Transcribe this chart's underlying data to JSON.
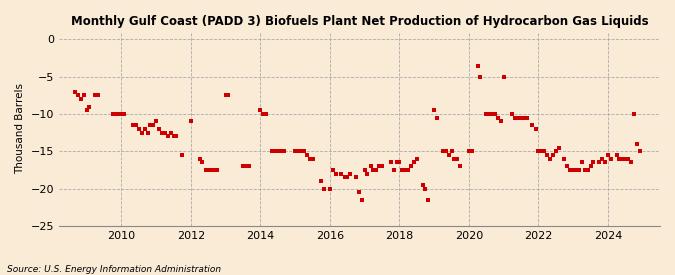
{
  "title": "Monthly Gulf Coast (PADD 3) Biofuels Plant Net Production of Hydrocarbon Gas Liquids",
  "ylabel": "Thousand Barrels",
  "source": "Source: U.S. Energy Information Administration",
  "background_color": "#faebd7",
  "marker_color": "#cc0000",
  "xlim_left": 2008.2,
  "xlim_right": 2025.5,
  "ylim_bottom": -25,
  "ylim_top": 1,
  "yticks": [
    0,
    -5,
    -10,
    -15,
    -20,
    -25
  ],
  "xticks": [
    2010,
    2012,
    2014,
    2016,
    2018,
    2020,
    2022,
    2024
  ],
  "data_points": [
    [
      2008.67,
      -7.0
    ],
    [
      2008.75,
      -7.5
    ],
    [
      2008.83,
      -8.0
    ],
    [
      2008.92,
      -7.5
    ],
    [
      2009.0,
      -9.5
    ],
    [
      2009.08,
      -9.0
    ],
    [
      2009.25,
      -7.5
    ],
    [
      2009.33,
      -7.5
    ],
    [
      2009.75,
      -10.0
    ],
    [
      2009.83,
      -10.0
    ],
    [
      2009.92,
      -10.0
    ],
    [
      2010.0,
      -10.0
    ],
    [
      2010.08,
      -10.0
    ],
    [
      2010.33,
      -11.5
    ],
    [
      2010.42,
      -11.5
    ],
    [
      2010.5,
      -12.0
    ],
    [
      2010.58,
      -12.5
    ],
    [
      2010.67,
      -12.0
    ],
    [
      2010.75,
      -12.5
    ],
    [
      2010.83,
      -11.5
    ],
    [
      2010.92,
      -11.5
    ],
    [
      2011.0,
      -11.0
    ],
    [
      2011.08,
      -12.0
    ],
    [
      2011.17,
      -12.5
    ],
    [
      2011.25,
      -12.5
    ],
    [
      2011.33,
      -13.0
    ],
    [
      2011.42,
      -12.5
    ],
    [
      2011.5,
      -13.0
    ],
    [
      2011.58,
      -13.0
    ],
    [
      2011.75,
      -15.5
    ],
    [
      2012.0,
      -11.0
    ],
    [
      2012.25,
      -16.0
    ],
    [
      2012.33,
      -16.5
    ],
    [
      2012.42,
      -17.5
    ],
    [
      2012.5,
      -17.5
    ],
    [
      2012.58,
      -17.5
    ],
    [
      2012.67,
      -17.5
    ],
    [
      2012.75,
      -17.5
    ],
    [
      2013.0,
      -7.5
    ],
    [
      2013.08,
      -7.5
    ],
    [
      2013.5,
      -17.0
    ],
    [
      2013.58,
      -17.0
    ],
    [
      2013.67,
      -17.0
    ],
    [
      2014.0,
      -9.5
    ],
    [
      2014.08,
      -10.0
    ],
    [
      2014.17,
      -10.0
    ],
    [
      2014.33,
      -15.0
    ],
    [
      2014.42,
      -15.0
    ],
    [
      2014.5,
      -15.0
    ],
    [
      2014.58,
      -15.0
    ],
    [
      2014.67,
      -15.0
    ],
    [
      2015.0,
      -15.0
    ],
    [
      2015.08,
      -15.0
    ],
    [
      2015.17,
      -15.0
    ],
    [
      2015.25,
      -15.0
    ],
    [
      2015.33,
      -15.5
    ],
    [
      2015.42,
      -16.0
    ],
    [
      2015.5,
      -16.0
    ],
    [
      2015.75,
      -19.0
    ],
    [
      2015.83,
      -20.0
    ],
    [
      2016.0,
      -20.0
    ],
    [
      2016.08,
      -17.5
    ],
    [
      2016.17,
      -18.0
    ],
    [
      2016.33,
      -18.0
    ],
    [
      2016.42,
      -18.5
    ],
    [
      2016.5,
      -18.5
    ],
    [
      2016.58,
      -18.0
    ],
    [
      2016.75,
      -18.5
    ],
    [
      2016.83,
      -20.5
    ],
    [
      2016.92,
      -21.5
    ],
    [
      2017.0,
      -17.5
    ],
    [
      2017.08,
      -18.0
    ],
    [
      2017.17,
      -17.0
    ],
    [
      2017.25,
      -17.5
    ],
    [
      2017.33,
      -17.5
    ],
    [
      2017.42,
      -17.0
    ],
    [
      2017.5,
      -17.0
    ],
    [
      2017.75,
      -16.5
    ],
    [
      2017.83,
      -17.5
    ],
    [
      2017.92,
      -16.5
    ],
    [
      2018.0,
      -16.5
    ],
    [
      2018.08,
      -17.5
    ],
    [
      2018.17,
      -17.5
    ],
    [
      2018.25,
      -17.5
    ],
    [
      2018.33,
      -17.0
    ],
    [
      2018.42,
      -16.5
    ],
    [
      2018.5,
      -16.0
    ],
    [
      2018.67,
      -19.5
    ],
    [
      2018.75,
      -20.0
    ],
    [
      2018.83,
      -21.5
    ],
    [
      2019.0,
      -9.5
    ],
    [
      2019.08,
      -10.5
    ],
    [
      2019.25,
      -15.0
    ],
    [
      2019.33,
      -15.0
    ],
    [
      2019.42,
      -15.5
    ],
    [
      2019.5,
      -15.0
    ],
    [
      2019.58,
      -16.0
    ],
    [
      2019.67,
      -16.0
    ],
    [
      2019.75,
      -17.0
    ],
    [
      2020.0,
      -15.0
    ],
    [
      2020.08,
      -15.0
    ],
    [
      2020.25,
      -3.5
    ],
    [
      2020.33,
      -5.0
    ],
    [
      2020.5,
      -10.0
    ],
    [
      2020.58,
      -10.0
    ],
    [
      2020.67,
      -10.0
    ],
    [
      2020.75,
      -10.0
    ],
    [
      2020.83,
      -10.5
    ],
    [
      2020.92,
      -11.0
    ],
    [
      2021.0,
      -5.0
    ],
    [
      2021.25,
      -10.0
    ],
    [
      2021.33,
      -10.5
    ],
    [
      2021.42,
      -10.5
    ],
    [
      2021.5,
      -10.5
    ],
    [
      2021.58,
      -10.5
    ],
    [
      2021.67,
      -10.5
    ],
    [
      2021.83,
      -11.5
    ],
    [
      2021.92,
      -12.0
    ],
    [
      2022.0,
      -15.0
    ],
    [
      2022.08,
      -15.0
    ],
    [
      2022.17,
      -15.0
    ],
    [
      2022.25,
      -15.5
    ],
    [
      2022.33,
      -16.0
    ],
    [
      2022.42,
      -15.5
    ],
    [
      2022.5,
      -15.0
    ],
    [
      2022.58,
      -14.5
    ],
    [
      2022.75,
      -16.0
    ],
    [
      2022.83,
      -17.0
    ],
    [
      2022.92,
      -17.5
    ],
    [
      2023.0,
      -17.5
    ],
    [
      2023.08,
      -17.5
    ],
    [
      2023.17,
      -17.5
    ],
    [
      2023.25,
      -16.5
    ],
    [
      2023.33,
      -17.5
    ],
    [
      2023.42,
      -17.5
    ],
    [
      2023.5,
      -17.0
    ],
    [
      2023.58,
      -16.5
    ],
    [
      2023.75,
      -16.5
    ],
    [
      2023.83,
      -16.0
    ],
    [
      2023.92,
      -16.5
    ],
    [
      2024.0,
      -15.5
    ],
    [
      2024.08,
      -16.0
    ],
    [
      2024.25,
      -15.5
    ],
    [
      2024.33,
      -16.0
    ],
    [
      2024.42,
      -16.0
    ],
    [
      2024.5,
      -16.0
    ],
    [
      2024.58,
      -16.0
    ],
    [
      2024.67,
      -16.5
    ],
    [
      2024.75,
      -10.0
    ],
    [
      2024.83,
      -14.0
    ],
    [
      2024.92,
      -15.0
    ]
  ]
}
